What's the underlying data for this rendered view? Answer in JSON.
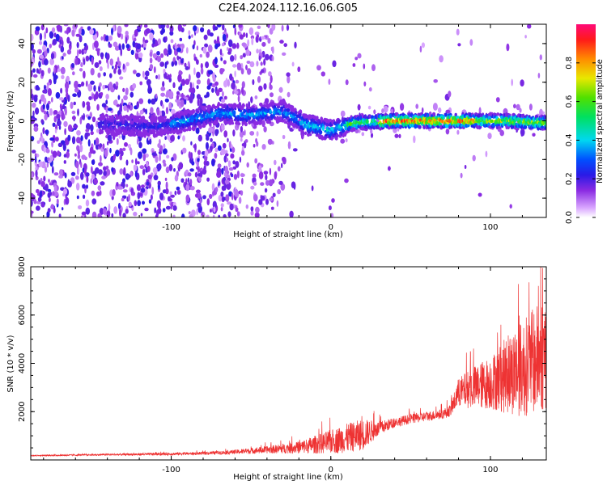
{
  "title": "C2E4.2024.112.16.06.G05",
  "chart_data": [
    {
      "type": "heatmap",
      "xlabel": "Height of straight line (km)",
      "ylabel": "Frequency (Hz)",
      "xlim": [
        -188,
        135
      ],
      "ylim": [
        -50,
        50
      ],
      "x_ticks": [
        -100,
        0,
        100
      ],
      "y_ticks": [
        -40,
        -20,
        0,
        20,
        40
      ],
      "colorbar": {
        "label": "Normalized spectral amplitude",
        "range": [
          0,
          1
        ],
        "ticks": [
          0.0,
          0.2,
          0.4,
          0.6,
          0.8
        ]
      },
      "signal_track": [
        {
          "x": -140,
          "y": -2
        },
        {
          "x": -110,
          "y": -3
        },
        {
          "x": -90,
          "y": 0
        },
        {
          "x": -70,
          "y": 4
        },
        {
          "x": -50,
          "y": 3
        },
        {
          "x": -30,
          "y": 5
        },
        {
          "x": -15,
          "y": -2
        },
        {
          "x": 0,
          "y": -5
        },
        {
          "x": 15,
          "y": -1
        },
        {
          "x": 40,
          "y": 0
        },
        {
          "x": 60,
          "y": 0
        },
        {
          "x": 90,
          "y": 0
        },
        {
          "x": 110,
          "y": 0
        },
        {
          "x": 130,
          "y": -1
        }
      ]
    },
    {
      "type": "line",
      "xlabel": "Height of straight line (km)",
      "ylabel": "SNR (10 * v/v)",
      "xlim": [
        -188,
        135
      ],
      "ylim": [
        0,
        8000
      ],
      "x_ticks": [
        -100,
        0,
        100
      ],
      "y_ticks": [
        2000,
        4000,
        6000,
        8000
      ],
      "series": [
        {
          "color": "#ee3333",
          "x": [
            -188,
            -160,
            -140,
            -120,
            -100,
            -80,
            -60,
            -40,
            -20,
            0,
            10,
            20,
            30,
            40,
            50,
            60,
            70,
            75,
            80,
            90,
            100,
            110,
            120,
            130,
            135
          ],
          "y": [
            180,
            200,
            220,
            230,
            250,
            270,
            330,
            420,
            520,
            750,
            900,
            1050,
            1300,
            1550,
            1700,
            1800,
            1900,
            2050,
            2800,
            3000,
            3200,
            3500,
            3800,
            4200,
            4500
          ],
          "noise": [
            20,
            30,
            40,
            50,
            60,
            60,
            90,
            150,
            250,
            500,
            600,
            650,
            300,
            200,
            200,
            200,
            200,
            250,
            600,
            900,
            1100,
            1600,
            2000,
            2300,
            2500
          ]
        }
      ]
    }
  ]
}
